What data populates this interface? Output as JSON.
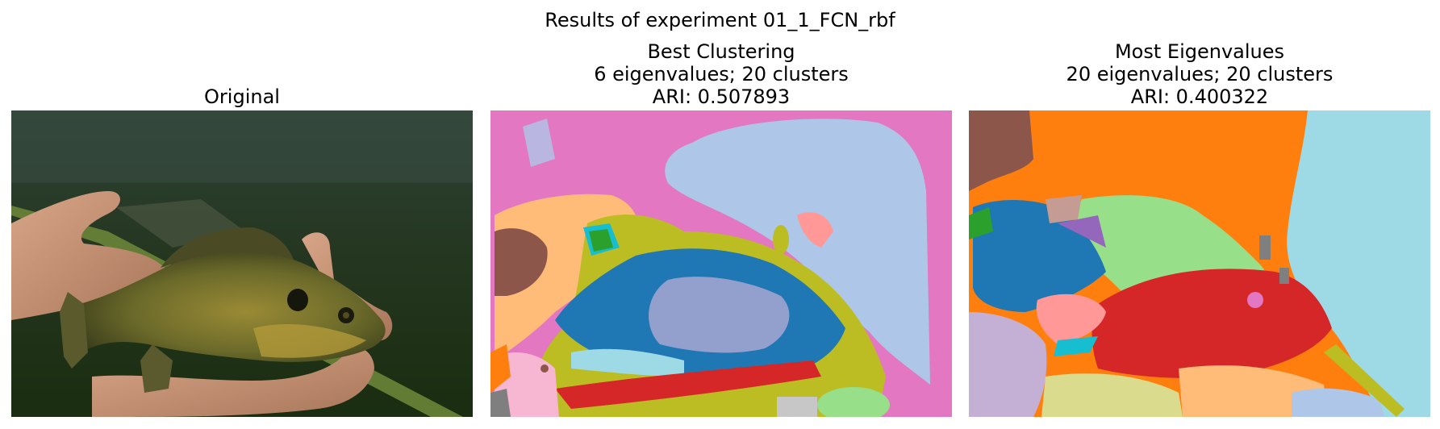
{
  "figure": {
    "suptitle": "Results of experiment 01_1_FCN_rbf"
  },
  "panels": [
    {
      "title_lines": [
        "Original"
      ]
    },
    {
      "title_lines": [
        "Best Clustering",
        "6 eigenvalues; 20 clusters",
        "ARI: 0.507893"
      ]
    },
    {
      "title_lines": [
        "Most Eigenvalues",
        "20 eigenvalues; 20 clusters",
        "ARI: 0.400322"
      ]
    }
  ],
  "colors": {
    "tab_blue": "#1f77b4",
    "tab_orange": "#ff7f0e",
    "tab_green": "#2ca02c",
    "tab_red": "#d62728",
    "tab_purple": "#9467bd",
    "tab_brown": "#8c564b",
    "tab_pink": "#e377c2",
    "tab_gray": "#7f7f7f",
    "tab_olive": "#bcbd22",
    "tab_cyan": "#17becf",
    "light_blue": "#aec7e8",
    "light_orange": "#ffbb78",
    "light_green": "#98df8a",
    "light_red": "#ff9896",
    "light_purple": "#c5b0d5",
    "light_brown": "#c49c94",
    "light_pink": "#f7b6d2",
    "light_gray": "#c7c7c7",
    "light_olive": "#dbdb8d",
    "light_cyan": "#9edae5"
  }
}
